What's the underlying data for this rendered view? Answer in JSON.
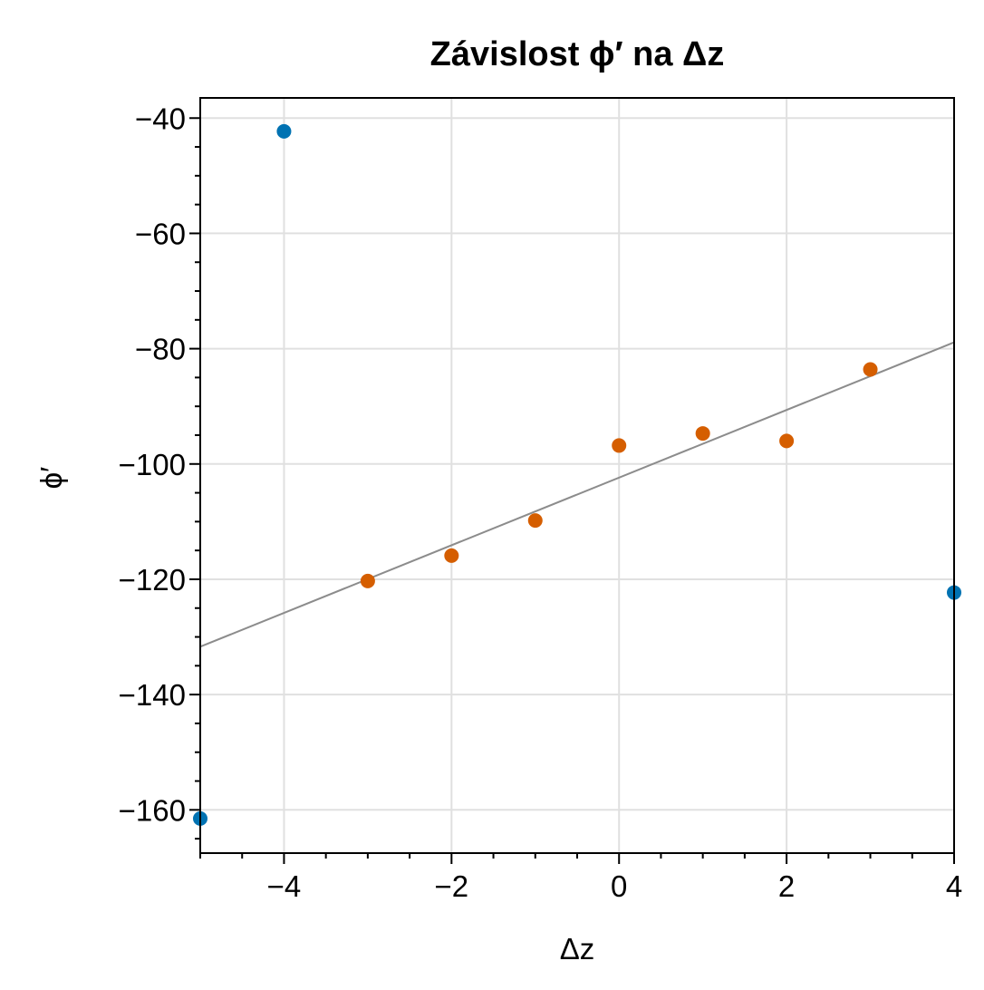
{
  "chart_data": {
    "type": "scatter",
    "title": "Závislost ϕ′ na Δz",
    "xlabel": "Δz",
    "ylabel": "ϕ′",
    "xlim": [
      -5,
      4
    ],
    "ylim": [
      -167.5,
      -36.5
    ],
    "x_ticks": [
      -4,
      -2,
      0,
      2,
      4
    ],
    "x_tick_labels": [
      "−4",
      "−2",
      "0",
      "2",
      "4"
    ],
    "y_ticks": [
      -40,
      -60,
      -80,
      -100,
      -120,
      -140,
      -160
    ],
    "y_tick_labels": [
      "−40",
      "−60",
      "−80",
      "−100",
      "−120",
      "−140",
      "−160"
    ],
    "x_minor_step": 0.5,
    "y_minor_step": 5,
    "grid": true,
    "series": [
      {
        "color": "#0072b2",
        "points": [
          {
            "x": -5,
            "y": -161.5
          },
          {
            "x": -4,
            "y": -42.3
          },
          {
            "x": 4,
            "y": -122.3
          }
        ]
      },
      {
        "color": "#d55e00",
        "points": [
          {
            "x": -3,
            "y": -120.3
          },
          {
            "x": -2,
            "y": -115.9
          },
          {
            "x": -1,
            "y": -109.8
          },
          {
            "x": 0,
            "y": -96.8
          },
          {
            "x": 1,
            "y": -94.7
          },
          {
            "x": 2,
            "y": -96.0
          },
          {
            "x": 3,
            "y": -83.6
          }
        ]
      }
    ],
    "fit_line": {
      "color": "#8c8c8c",
      "x": [
        -5,
        4
      ],
      "y": [
        -131.7,
        -78.9
      ]
    }
  }
}
